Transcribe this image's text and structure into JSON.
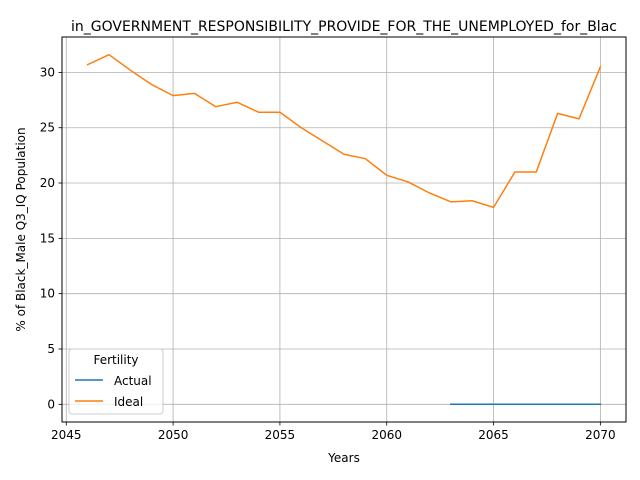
{
  "chart_data": {
    "type": "line",
    "title": "in_GOVERNMENT_RESPONSIBILITY_PROVIDE_FOR_THE_UNEMPLOYED_for_Blac",
    "xlabel": "Years",
    "ylabel": "% of Black_Male Q3_IQ Population",
    "xlim": [
      2044.8,
      2071.2
    ],
    "ylim": [
      -1.6,
      33.2
    ],
    "xticks": [
      2045,
      2050,
      2055,
      2060,
      2065,
      2070
    ],
    "yticks": [
      0,
      5,
      10,
      15,
      20,
      25,
      30
    ],
    "grid": true,
    "legend": {
      "title": "Fertility",
      "placement": "lower left"
    },
    "series": [
      {
        "name": "Actual",
        "color": "#1f77b4",
        "x": [
          2063,
          2064,
          2065,
          2066,
          2067,
          2068,
          2069,
          2070
        ],
        "y": [
          0,
          0,
          0,
          0,
          0,
          0,
          0,
          0
        ]
      },
      {
        "name": "Ideal",
        "color": "#ff7f0e",
        "x": [
          2046,
          2047,
          2048,
          2049,
          2050,
          2051,
          2052,
          2053,
          2054,
          2055,
          2056,
          2057,
          2058,
          2059,
          2060,
          2061,
          2062,
          2063,
          2064,
          2065,
          2066,
          2067,
          2068,
          2069,
          2070
        ],
        "y": [
          30.7,
          31.6,
          30.2,
          28.9,
          27.9,
          28.1,
          26.9,
          27.3,
          26.4,
          26.4,
          25.0,
          23.8,
          22.6,
          22.2,
          20.7,
          20.1,
          19.1,
          18.3,
          18.4,
          17.8,
          21.0,
          21.0,
          26.3,
          25.8,
          30.5
        ]
      }
    ]
  }
}
